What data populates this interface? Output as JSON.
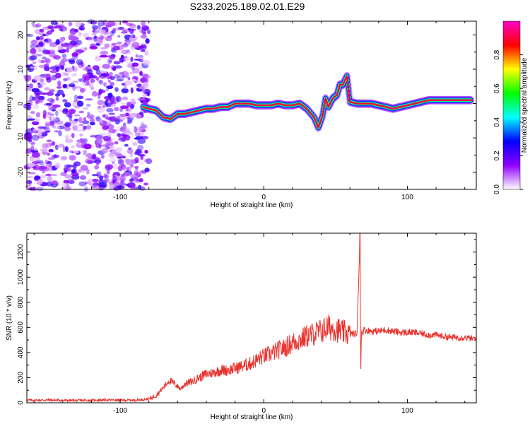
{
  "chart_data": [
    {
      "type": "heatmap",
      "title": "S233.2025.189.02.01.E29",
      "xlabel": "Height of straight line (km)",
      "ylabel": "Frequency (Hz)",
      "xlim": [
        -165,
        148
      ],
      "ylim": [
        -25,
        24
      ],
      "xticks": [
        -100,
        0,
        100
      ],
      "yticks": [
        -20,
        -10,
        0,
        10,
        20
      ],
      "colorbar": {
        "label": "Normalized spectral amplitude",
        "range": [
          0,
          1
        ],
        "ticks": [
          0.0,
          0.2,
          0.4,
          0.6,
          0.8
        ],
        "colors": [
          "#ffffff",
          "#9000ff",
          "#0000ff",
          "#00ffff",
          "#00ff00",
          "#ffff00",
          "#ff0000",
          "#ff00c8"
        ]
      },
      "noise_region": {
        "x_range": [
          -165,
          -80
        ],
        "y_range": [
          -25,
          24
        ],
        "amplitude": 0.15
      },
      "ridge": [
        {
          "x": -84,
          "y": -1.0
        },
        {
          "x": -80,
          "y": -1.5
        },
        {
          "x": -75,
          "y": -2.0
        },
        {
          "x": -70,
          "y": -4.0
        },
        {
          "x": -65,
          "y": -4.5
        },
        {
          "x": -60,
          "y": -3.0
        },
        {
          "x": -55,
          "y": -3.0
        },
        {
          "x": -50,
          "y": -2.5
        },
        {
          "x": -45,
          "y": -2.0
        },
        {
          "x": -40,
          "y": -1.5
        },
        {
          "x": -35,
          "y": -1.5
        },
        {
          "x": -30,
          "y": -1.0
        },
        {
          "x": -25,
          "y": -1.0
        },
        {
          "x": -20,
          "y": 0.0
        },
        {
          "x": -15,
          "y": 0.0
        },
        {
          "x": -10,
          "y": 0.0
        },
        {
          "x": -5,
          "y": -0.5
        },
        {
          "x": 0,
          "y": -0.5
        },
        {
          "x": 5,
          "y": -0.5
        },
        {
          "x": 10,
          "y": 0.0
        },
        {
          "x": 15,
          "y": -0.5
        },
        {
          "x": 20,
          "y": -0.5
        },
        {
          "x": 25,
          "y": 0.0
        },
        {
          "x": 30,
          "y": -1.5
        },
        {
          "x": 35,
          "y": -4.0
        },
        {
          "x": 38,
          "y": -7.0
        },
        {
          "x": 41,
          "y": -3.5
        },
        {
          "x": 43,
          "y": 1.5
        },
        {
          "x": 45,
          "y": -1.0
        },
        {
          "x": 48,
          "y": 1.5
        },
        {
          "x": 51,
          "y": 2.5
        },
        {
          "x": 53,
          "y": 5.5
        },
        {
          "x": 55,
          "y": 5.5
        },
        {
          "x": 58,
          "y": 8.0
        },
        {
          "x": 60,
          "y": 0.5
        },
        {
          "x": 65,
          "y": 0.0
        },
        {
          "x": 70,
          "y": 0.0
        },
        {
          "x": 75,
          "y": 0.0
        },
        {
          "x": 80,
          "y": -0.5
        },
        {
          "x": 85,
          "y": -1.0
        },
        {
          "x": 90,
          "y": -1.5
        },
        {
          "x": 95,
          "y": -1.0
        },
        {
          "x": 100,
          "y": -0.5
        },
        {
          "x": 105,
          "y": 0.0
        },
        {
          "x": 110,
          "y": 0.5
        },
        {
          "x": 115,
          "y": 1.0
        },
        {
          "x": 120,
          "y": 1.0
        },
        {
          "x": 125,
          "y": 1.0
        },
        {
          "x": 130,
          "y": 1.0
        },
        {
          "x": 135,
          "y": 1.0
        },
        {
          "x": 140,
          "y": 1.0
        },
        {
          "x": 145,
          "y": 1.0
        }
      ]
    },
    {
      "type": "line",
      "xlabel": "Height of straight line (km)",
      "ylabel": "SNR (10 * v/v)",
      "xlim": [
        -165,
        148
      ],
      "ylim": [
        0,
        1350
      ],
      "xticks": [
        -100,
        0,
        100
      ],
      "yticks": [
        0,
        200,
        400,
        600,
        800,
        1000,
        1200
      ],
      "series": [
        {
          "color": "#e8332e",
          "x": [
            -165,
            -150,
            -130,
            -110,
            -90,
            -80,
            -75,
            -70,
            -66,
            -62,
            -58,
            -55,
            -50,
            -45,
            -40,
            -35,
            -30,
            -25,
            -20,
            -15,
            -10,
            -5,
            0,
            5,
            10,
            15,
            20,
            25,
            30,
            35,
            40,
            45,
            50,
            55,
            60,
            65,
            67,
            67.5,
            68,
            70,
            75,
            80,
            85,
            90,
            95,
            100,
            105,
            110,
            115,
            120,
            125,
            130,
            135,
            140,
            145,
            148
          ],
          "y": [
            20,
            22,
            18,
            22,
            20,
            30,
            60,
            120,
            180,
            150,
            110,
            150,
            170,
            200,
            230,
            240,
            260,
            260,
            275,
            290,
            310,
            340,
            370,
            390,
            420,
            440,
            480,
            500,
            530,
            550,
            570,
            600,
            590,
            560,
            550,
            550,
            1350,
            270,
            560,
            580,
            570,
            570,
            580,
            570,
            560,
            560,
            560,
            550,
            540,
            540,
            530,
            520,
            520,
            520,
            510,
            510
          ]
        }
      ]
    }
  ]
}
